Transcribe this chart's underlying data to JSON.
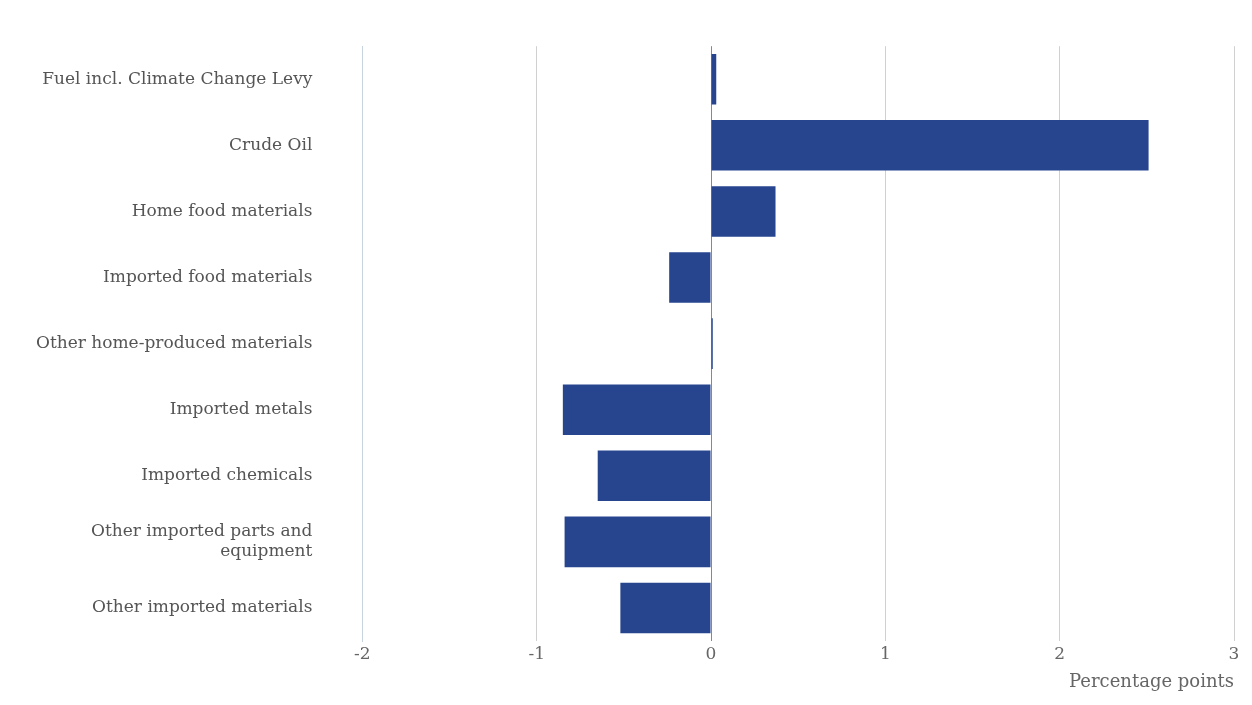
{
  "chart_data": {
    "type": "bar",
    "orientation": "horizontal",
    "xlabel": "Percentage points",
    "categories": [
      "Fuel incl. Climate Change Levy",
      "Crude Oil",
      "Home food materials",
      "Imported food materials",
      "Other home-produced materials",
      "Imported metals",
      "Imported chemicals",
      "Other imported parts and equipment",
      "Other imported materials"
    ],
    "values": [
      0.03,
      2.51,
      0.37,
      -0.24,
      0.01,
      -0.85,
      -0.65,
      -0.84,
      -0.52
    ],
    "color": "#27458f",
    "xlim": [
      -2,
      3
    ],
    "xticks": [
      -2,
      -1,
      0,
      1,
      2,
      3
    ],
    "grid": "x",
    "legend": false
  }
}
